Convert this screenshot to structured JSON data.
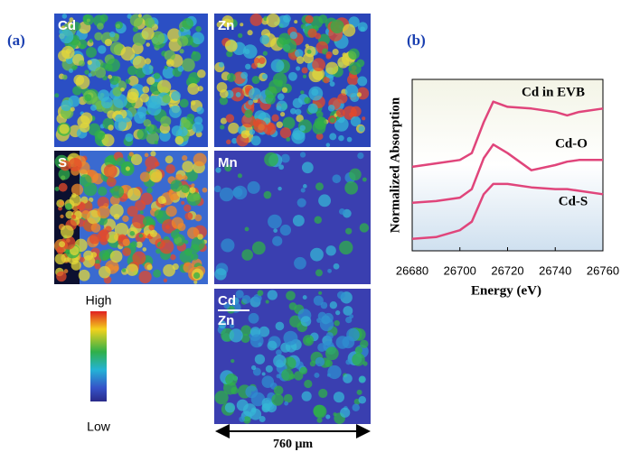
{
  "figure": {
    "panel_labels": [
      "(a)",
      "(b)"
    ],
    "map_labels": [
      "Cd",
      "Zn",
      "S",
      "Mn",
      "Cd",
      "Zn"
    ],
    "colorbar": {
      "high": "High",
      "low": "Low"
    },
    "scale_bar": "760 μm"
  },
  "chart_data": {
    "type": "line",
    "xlabel": "Energy (eV)",
    "ylabel": "Normalized Absorption",
    "x": [
      26680,
      26690,
      26700,
      26705,
      26710,
      26714,
      26720,
      26730,
      26740,
      26745,
      26750,
      26760
    ],
    "xlim": [
      26680,
      26760
    ],
    "xticks": [
      26680,
      26700,
      26720,
      26740,
      26760
    ],
    "ylim": [
      0,
      10
    ],
    "series": [
      {
        "name": "Cd in EVB",
        "color": "#e0457b",
        "values": [
          4.9,
          5.1,
          5.3,
          5.7,
          7.5,
          8.7,
          8.4,
          8.3,
          8.1,
          7.9,
          8.1,
          8.3
        ]
      },
      {
        "name": "Cd-O",
        "color": "#e0457b",
        "values": [
          2.8,
          2.9,
          3.1,
          3.6,
          5.4,
          6.2,
          5.7,
          4.7,
          5.0,
          5.2,
          5.3,
          5.3
        ]
      },
      {
        "name": "Cd-S",
        "color": "#e0457b",
        "values": [
          0.7,
          0.8,
          1.2,
          1.7,
          3.3,
          3.9,
          3.9,
          3.7,
          3.6,
          3.6,
          3.5,
          3.3
        ]
      }
    ]
  }
}
